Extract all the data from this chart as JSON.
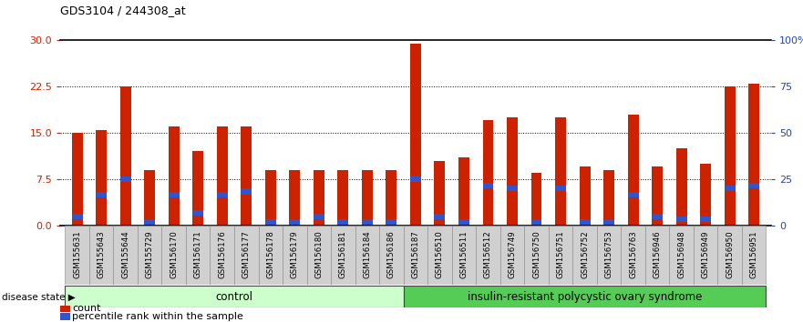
{
  "title": "GDS3104 / 244308_at",
  "samples": [
    "GSM155631",
    "GSM155643",
    "GSM155644",
    "GSM155729",
    "GSM156170",
    "GSM156171",
    "GSM156176",
    "GSM156177",
    "GSM156178",
    "GSM156179",
    "GSM156180",
    "GSM156181",
    "GSM156184",
    "GSM156186",
    "GSM156187",
    "GSM156510",
    "GSM156511",
    "GSM156512",
    "GSM156749",
    "GSM156750",
    "GSM156751",
    "GSM156752",
    "GSM156753",
    "GSM156763",
    "GSM156946",
    "GSM156948",
    "GSM156949",
    "GSM156950",
    "GSM156951"
  ],
  "red_values": [
    15.0,
    15.5,
    22.5,
    9.0,
    16.0,
    12.0,
    16.0,
    16.0,
    9.0,
    9.0,
    9.0,
    9.0,
    9.0,
    9.0,
    29.5,
    10.5,
    11.0,
    17.0,
    17.5,
    8.5,
    17.5,
    9.5,
    9.0,
    18.0,
    9.5,
    12.5,
    10.0,
    22.5,
    23.0
  ],
  "blue_values": [
    1.5,
    5.0,
    7.5,
    0.5,
    5.0,
    2.0,
    5.0,
    5.5,
    0.5,
    0.5,
    1.5,
    0.5,
    0.5,
    0.5,
    7.5,
    1.5,
    0.5,
    6.5,
    6.0,
    0.5,
    6.0,
    0.5,
    0.5,
    5.0,
    1.5,
    1.0,
    1.0,
    6.0,
    6.5
  ],
  "control_count": 14,
  "disease_label": "insulin-resistant polycystic ovary syndrome",
  "control_label": "control",
  "ylim_left": [
    0,
    30
  ],
  "yticks_left": [
    0,
    7.5,
    15,
    22.5,
    30
  ],
  "ylim_right": [
    0,
    100
  ],
  "yticks_right": [
    0,
    25,
    50,
    75,
    100
  ],
  "ytick_labels_right": [
    "0",
    "25",
    "50",
    "75",
    "100%"
  ],
  "bar_color": "#cc2200",
  "blue_color": "#3355cc",
  "control_bg": "#ccffcc",
  "disease_bg": "#55cc55",
  "bar_width": 0.45,
  "legend_count_label": "count",
  "legend_pct_label": "percentile rank within the sample",
  "left_tick_color": "#cc2200",
  "right_tick_color": "#2244bb",
  "disease_state_label": "disease state"
}
